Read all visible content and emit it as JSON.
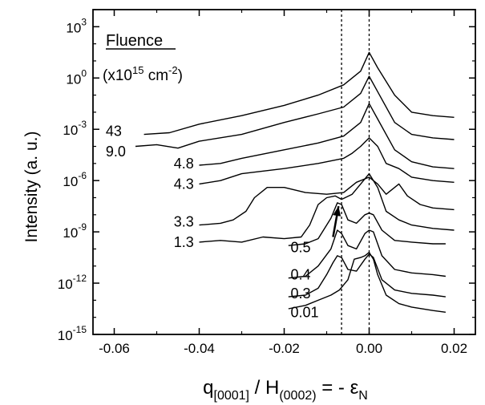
{
  "chart_data": {
    "type": "line",
    "xlabel": "q[0001] / H(0002) = - εN",
    "xlabel_parts": {
      "q": "q",
      "q_sub": "[0001]",
      "mid": " / H",
      "h_sub": "(0002)",
      "eq": " = - ε",
      "eps_sub": "N"
    },
    "ylabel": "Intensity (a. u.)",
    "x_range": [
      -0.065,
      0.025
    ],
    "y_range_log10": [
      -15,
      4
    ],
    "y_scale": "log",
    "x_ticks": [
      -0.06,
      -0.04,
      -0.02,
      0.0,
      0.02
    ],
    "x_tick_labels": [
      "-0.06",
      "-0.04",
      "-0.02",
      "0.00",
      "0.02"
    ],
    "y_ticks_log10": [
      3,
      0,
      -3,
      -6,
      -9,
      -12,
      -15
    ],
    "y_tick_bases": [
      "10",
      "10",
      "10",
      "10",
      "10",
      "10",
      "10"
    ],
    "y_tick_exponents": [
      "3",
      "0",
      "-3",
      "-6",
      "-9",
      "-12",
      "-15"
    ],
    "legend_title": "Fluence",
    "legend_unit": {
      "pre": "(x10",
      "exp1": "15",
      "mid": " cm",
      "exp2": "-2",
      "post": ")"
    },
    "reference_lines_x": [
      -0.0065,
      0.0
    ],
    "arrow": {
      "from": [
        -0.0085,
        -9.3
      ],
      "to": [
        -0.0072,
        -7.5
      ]
    },
    "series": [
      {
        "name": "43",
        "label_pos": [
          -0.062,
          -3.1
        ],
        "points": [
          [
            -0.053,
            -3.3
          ],
          [
            -0.047,
            -3.2
          ],
          [
            -0.04,
            -2.7
          ],
          [
            -0.03,
            -2.2
          ],
          [
            -0.02,
            -1.6
          ],
          [
            -0.012,
            -1.0
          ],
          [
            -0.006,
            -0.4
          ],
          [
            -0.002,
            0.4
          ],
          [
            0.0,
            1.5
          ],
          [
            0.002,
            0.6
          ],
          [
            0.006,
            -1.0
          ],
          [
            0.01,
            -2.0
          ],
          [
            0.015,
            -2.2
          ],
          [
            0.02,
            -2.3
          ]
        ]
      },
      {
        "name": "9.0",
        "label_pos": [
          -0.062,
          -4.3
        ],
        "points": [
          [
            -0.055,
            -4.0
          ],
          [
            -0.05,
            -3.9
          ],
          [
            -0.045,
            -4.1
          ],
          [
            -0.04,
            -3.7
          ],
          [
            -0.03,
            -3.3
          ],
          [
            -0.02,
            -2.6
          ],
          [
            -0.012,
            -2.1
          ],
          [
            -0.006,
            -1.7
          ],
          [
            -0.002,
            -0.9
          ],
          [
            0.0,
            0.1
          ],
          [
            0.002,
            -0.8
          ],
          [
            0.006,
            -2.6
          ],
          [
            0.01,
            -3.3
          ],
          [
            0.015,
            -3.5
          ],
          [
            0.02,
            -3.6
          ]
        ]
      },
      {
        "name": "4.8",
        "label_pos": [
          -0.046,
          -5.0
        ],
        "points": [
          [
            -0.04,
            -5.1
          ],
          [
            -0.035,
            -5.0
          ],
          [
            -0.03,
            -4.7
          ],
          [
            -0.02,
            -4.2
          ],
          [
            -0.012,
            -3.8
          ],
          [
            -0.006,
            -3.4
          ],
          [
            -0.002,
            -2.6
          ],
          [
            0.0,
            -1.5
          ],
          [
            0.002,
            -2.4
          ],
          [
            0.006,
            -4.2
          ],
          [
            0.01,
            -4.9
          ],
          [
            0.015,
            -5.2
          ],
          [
            0.02,
            -5.3
          ]
        ]
      },
      {
        "name": "4.3",
        "label_pos": [
          -0.046,
          -6.2
        ],
        "points": [
          [
            -0.04,
            -6.2
          ],
          [
            -0.035,
            -6.0
          ],
          [
            -0.03,
            -5.6
          ],
          [
            -0.02,
            -5.3
          ],
          [
            -0.012,
            -5.0
          ],
          [
            -0.006,
            -4.7
          ],
          [
            -0.004,
            -4.4
          ],
          [
            -0.002,
            -4.0
          ],
          [
            0.0,
            -3.5
          ],
          [
            0.002,
            -4.0
          ],
          [
            0.004,
            -5.0
          ],
          [
            0.007,
            -5.3
          ],
          [
            0.01,
            -5.8
          ],
          [
            0.015,
            -6.0
          ],
          [
            0.02,
            -6.1
          ]
        ]
      },
      {
        "name": "3.3",
        "label_pos": [
          -0.046,
          -8.4
        ],
        "points": [
          [
            -0.04,
            -8.6
          ],
          [
            -0.035,
            -8.5
          ],
          [
            -0.032,
            -8.3
          ],
          [
            -0.029,
            -7.8
          ],
          [
            -0.027,
            -7.0
          ],
          [
            -0.024,
            -6.4
          ],
          [
            -0.02,
            -6.4
          ],
          [
            -0.015,
            -6.7
          ],
          [
            -0.01,
            -6.8
          ],
          [
            -0.006,
            -6.7
          ],
          [
            -0.003,
            -6.1
          ],
          [
            0.0,
            -5.8
          ],
          [
            0.002,
            -6.2
          ],
          [
            0.004,
            -6.8
          ],
          [
            0.007,
            -6.2
          ],
          [
            0.009,
            -6.9
          ],
          [
            0.012,
            -7.4
          ],
          [
            0.015,
            -7.6
          ],
          [
            0.02,
            -7.7
          ]
        ]
      },
      {
        "name": "1.3",
        "label_pos": [
          -0.046,
          -9.6
        ],
        "points": [
          [
            -0.04,
            -9.6
          ],
          [
            -0.035,
            -9.5
          ],
          [
            -0.03,
            -9.6
          ],
          [
            -0.025,
            -9.3
          ],
          [
            -0.02,
            -9.4
          ],
          [
            -0.016,
            -9.3
          ],
          [
            -0.014,
            -8.6
          ],
          [
            -0.012,
            -7.4
          ],
          [
            -0.01,
            -7.0
          ],
          [
            -0.008,
            -6.9
          ],
          [
            -0.0065,
            -7.1
          ],
          [
            -0.004,
            -6.8
          ],
          [
            -0.002,
            -6.2
          ],
          [
            0.0,
            -5.6
          ],
          [
            0.002,
            -6.4
          ],
          [
            0.004,
            -7.8
          ],
          [
            0.007,
            -8.3
          ],
          [
            0.01,
            -8.6
          ],
          [
            0.015,
            -8.8
          ],
          [
            0.02,
            -8.9
          ]
        ]
      },
      {
        "name": "0.5",
        "label_pos": [
          -0.0185,
          -9.9
        ],
        "points": [
          [
            -0.019,
            -9.8
          ],
          [
            -0.015,
            -9.7
          ],
          [
            -0.012,
            -9.4
          ],
          [
            -0.009,
            -8.2
          ],
          [
            -0.0075,
            -7.3
          ],
          [
            -0.0065,
            -7.4
          ],
          [
            -0.005,
            -8.3
          ],
          [
            -0.003,
            -8.5
          ],
          [
            -0.001,
            -8.0
          ],
          [
            0.0,
            -7.9
          ],
          [
            0.001,
            -8.0
          ],
          [
            0.003,
            -8.9
          ],
          [
            0.006,
            -9.5
          ],
          [
            0.01,
            -9.6
          ],
          [
            0.015,
            -9.7
          ],
          [
            0.018,
            -9.7
          ]
        ]
      },
      {
        "name": "0.4",
        "label_pos": [
          -0.0185,
          -11.5
        ],
        "points": [
          [
            -0.019,
            -11.7
          ],
          [
            -0.015,
            -11.6
          ],
          [
            -0.012,
            -11.0
          ],
          [
            -0.009,
            -10.0
          ],
          [
            -0.0075,
            -8.9
          ],
          [
            -0.0065,
            -9.1
          ],
          [
            -0.005,
            -9.8
          ],
          [
            -0.003,
            -10.0
          ],
          [
            -0.001,
            -9.1
          ],
          [
            0.0,
            -8.9
          ],
          [
            0.001,
            -9.0
          ],
          [
            0.003,
            -10.4
          ],
          [
            0.006,
            -11.2
          ],
          [
            0.01,
            -11.4
          ],
          [
            0.015,
            -11.5
          ],
          [
            0.018,
            -11.6
          ]
        ]
      },
      {
        "name": "0.3",
        "label_pos": [
          -0.0185,
          -12.6
        ],
        "points": [
          [
            -0.019,
            -12.8
          ],
          [
            -0.015,
            -12.7
          ],
          [
            -0.012,
            -12.3
          ],
          [
            -0.01,
            -11.5
          ],
          [
            -0.0085,
            -10.8
          ],
          [
            -0.0075,
            -10.4
          ],
          [
            -0.0065,
            -10.5
          ],
          [
            -0.005,
            -11.2
          ],
          [
            -0.003,
            -11.3
          ],
          [
            -0.001,
            -10.6
          ],
          [
            0.0,
            -10.3
          ],
          [
            0.001,
            -10.5
          ],
          [
            0.003,
            -11.8
          ],
          [
            0.006,
            -12.4
          ],
          [
            0.01,
            -12.6
          ],
          [
            0.015,
            -12.7
          ],
          [
            0.018,
            -12.8
          ]
        ]
      },
      {
        "name": "0.01",
        "label_pos": [
          -0.0185,
          -13.7
        ],
        "points": [
          [
            -0.019,
            -13.5
          ],
          [
            -0.015,
            -13.3
          ],
          [
            -0.012,
            -13.0
          ],
          [
            -0.009,
            -12.7
          ],
          [
            -0.007,
            -12.4
          ],
          [
            -0.005,
            -11.8
          ],
          [
            -0.0035,
            -10.6
          ],
          [
            -0.002,
            -10.5
          ],
          [
            -0.001,
            -10.4
          ],
          [
            0.0,
            -10.2
          ],
          [
            0.001,
            -10.6
          ],
          [
            0.002,
            -11.5
          ],
          [
            0.004,
            -12.7
          ],
          [
            0.007,
            -13.2
          ],
          [
            0.01,
            -13.4
          ],
          [
            0.015,
            -13.6
          ],
          [
            0.018,
            -13.7
          ]
        ]
      }
    ]
  }
}
